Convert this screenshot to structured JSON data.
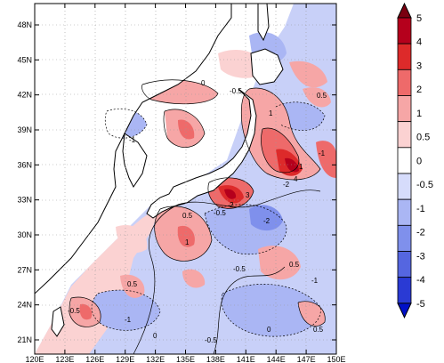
{
  "map": {
    "lon_ticks": [
      "120E",
      "123E",
      "126E",
      "129E",
      "132E",
      "135E",
      "138E",
      "141E",
      "144E",
      "147E",
      "150E"
    ],
    "lat_ticks": [
      "48N",
      "45N",
      "42N",
      "39N",
      "36N",
      "33N",
      "30N",
      "27N",
      "24N",
      "21N"
    ]
  },
  "colorbar": {
    "levels": [
      "5",
      "4",
      "3",
      "2",
      "1",
      "0.5",
      "0",
      "-0.5",
      "-1",
      "-2",
      "-3",
      "-4",
      "-5"
    ],
    "colors": [
      "#7a0010",
      "#b5001c",
      "#dd2a2a",
      "#ee6a6a",
      "#f6a6a6",
      "#fbd2d2",
      "#ffffff",
      "#d6dcfb",
      "#aab6f4",
      "#7f90ec",
      "#5566e0",
      "#2a3ad4",
      "#0010c8"
    ]
  },
  "contour_labels": [
    {
      "text": "0"
    },
    {
      "text": "-0.5"
    },
    {
      "text": "1"
    },
    {
      "text": "-1"
    },
    {
      "text": "0.5"
    },
    {
      "text": "-2"
    },
    {
      "text": "-0.5"
    },
    {
      "text": "0.5"
    },
    {
      "text": "-1"
    },
    {
      "text": "1"
    },
    {
      "text": "0.5"
    },
    {
      "text": "-0.5"
    },
    {
      "text": "0"
    },
    {
      "text": "-1"
    },
    {
      "text": "0.5"
    },
    {
      "text": "-0.5"
    },
    {
      "text": "1"
    },
    {
      "text": "-2"
    },
    {
      "text": "3"
    },
    {
      "text": "-0.5"
    },
    {
      "text": "-1"
    },
    {
      "text": "0.5"
    },
    {
      "text": "0"
    },
    {
      "text": "2"
    },
    {
      "text": "4"
    }
  ]
}
